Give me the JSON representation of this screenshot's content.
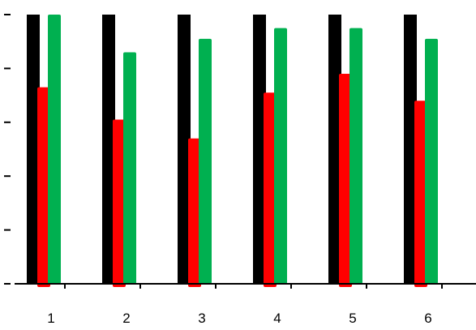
{
  "chart_data": {
    "type": "bar",
    "title": "",
    "xlabel": "",
    "ylabel": "",
    "categories": [
      "1",
      "2",
      "3",
      "4",
      "5",
      "6"
    ],
    "ylim": [
      0,
      1
    ],
    "y_tick_count": 6,
    "y_tick_labels_visible": false,
    "grid": false,
    "legend": "none",
    "series": [
      {
        "color": "#000000",
        "values": [
          1.0,
          1.0,
          1.0,
          1.0,
          1.0,
          1.0
        ],
        "clipped_at_top": true
      },
      {
        "color": "#ff0000",
        "values": [
          0.73,
          0.61,
          0.54,
          0.71,
          0.78,
          0.68
        ]
      },
      {
        "color": "#00b050",
        "values": [
          1.0,
          0.86,
          0.91,
          0.95,
          0.95,
          0.91
        ]
      }
    ]
  }
}
